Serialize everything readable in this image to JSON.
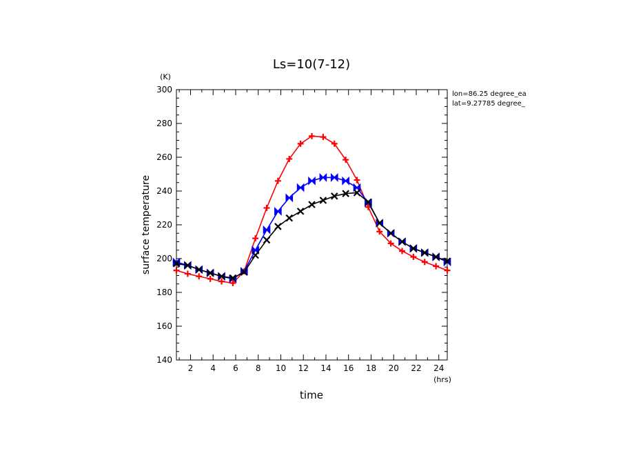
{
  "chart_data": {
    "type": "line",
    "title": "Ls=10(7-12)",
    "xlabel": "time",
    "ylabel": "surface temperature",
    "x_unit": "(hrs)",
    "y_unit": "(K)",
    "xlim": [
      0.75,
      24.75
    ],
    "ylim": [
      140,
      300
    ],
    "x_ticks": [
      2,
      4,
      6,
      8,
      10,
      12,
      14,
      16,
      18,
      20,
      22,
      24
    ],
    "y_ticks": [
      140,
      160,
      180,
      200,
      220,
      240,
      260,
      280,
      300
    ],
    "annotations": [
      "lon=86.25 degree_ea",
      "lat=9.27785 degree_"
    ],
    "x": [
      0.75,
      1.75,
      2.75,
      3.75,
      4.75,
      5.75,
      6.75,
      7.75,
      8.75,
      9.75,
      10.75,
      11.75,
      12.75,
      13.75,
      14.75,
      15.75,
      16.75,
      17.75,
      18.75,
      19.75,
      20.75,
      21.75,
      22.75,
      23.75,
      24.75
    ],
    "series": [
      {
        "color": "#ff0000",
        "marker": "plus",
        "values": [
          193,
          191,
          189.5,
          188,
          186.5,
          185.5,
          192.5,
          212,
          230,
          246,
          259,
          268,
          272.5,
          272,
          268,
          258.5,
          246.5,
          230.5,
          216,
          209,
          204.5,
          201,
          198,
          195.5,
          193
        ]
      },
      {
        "color": "#0000ff",
        "marker": "bowtie",
        "values": [
          198,
          196,
          193.5,
          191.5,
          189.5,
          188,
          192.5,
          205,
          217,
          228,
          236,
          242,
          246,
          248,
          248,
          246,
          242,
          233,
          221,
          215,
          210,
          206,
          203.5,
          201,
          198
        ]
      },
      {
        "color": "#000000",
        "marker": "x",
        "values": [
          197,
          196,
          193.5,
          191.5,
          189.5,
          188.5,
          192,
          202,
          211,
          219,
          224,
          228,
          232,
          234.5,
          237,
          238.5,
          239,
          233.5,
          221,
          215,
          210,
          206,
          203.5,
          201,
          198.5
        ]
      }
    ]
  }
}
